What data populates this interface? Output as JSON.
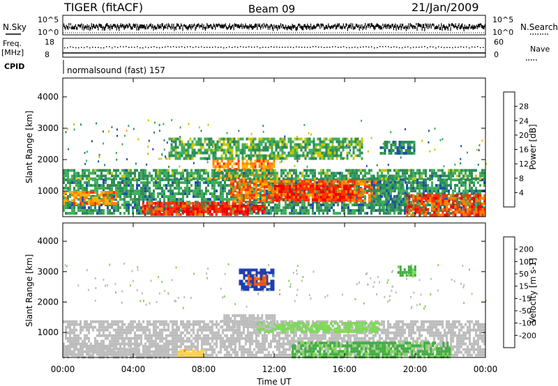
{
  "header": {
    "title": "TIGER (fitACF)",
    "beam": "Beam 09",
    "date": "21/Jan/2009"
  },
  "aux_panels": {
    "nsky_label": "N.Sky",
    "nsky_ticks": [
      "10^5",
      "10^0"
    ],
    "nsearch_label": "N.Search",
    "nsearch_ticks": [
      "10^5",
      "10^0"
    ],
    "freq_label_1": "Freq.",
    "freq_label_2": "[MHz]",
    "freq_ticks": [
      "18",
      "8"
    ],
    "nave_label": "Nave",
    "nave_ticks": [
      "60",
      "0"
    ],
    "cpid_label": "CPID",
    "cpid_text": "normalsound (fast) 157"
  },
  "colors": {
    "power_scale": [
      "#0000ff",
      "#1f4fa8",
      "#2e8b57",
      "#3fae5a",
      "#c8c800",
      "#ffb000",
      "#ff7f00",
      "#ff3000",
      "#ee0000"
    ],
    "velocity_scale": [
      "#ee0000",
      "#ff5a00",
      "#ff9a00",
      "#ffd24a",
      "#bdbdbd",
      "#bdbdbd",
      "#7ed957",
      "#3fae3f",
      "#2e8b57",
      "#1f3fb0",
      "#0000cc"
    ],
    "ground_scatter": "#bdbdbd"
  },
  "chart_data": [
    {
      "type": "heatmap",
      "name": "power",
      "xlabel": "",
      "ylabel": "Slant Range [km]",
      "x_ticks": [
        "00:00",
        "04:00",
        "08:00",
        "12:00",
        "16:00",
        "20:00",
        "00:00"
      ],
      "y_ticks": [
        "1000",
        "2000",
        "3000",
        "4000"
      ],
      "ylim": [
        180,
        4600
      ],
      "colorbar_label": "Power [dB]",
      "colorbar_ticks": [
        "4",
        "8",
        "12",
        "16",
        "20",
        "24",
        "28"
      ],
      "colorbar_range": [
        0,
        32
      ],
      "regions": [
        {
          "t0": 0.0,
          "t1": 24.0,
          "r0": 250,
          "r1": 1400,
          "value": 10
        },
        {
          "t0": 0.0,
          "t1": 3.0,
          "r0": 600,
          "r1": 1000,
          "value": 22
        },
        {
          "t0": 4.5,
          "t1": 10.5,
          "r0": 280,
          "r1": 650,
          "value": 27
        },
        {
          "t0": 7.0,
          "t1": 11.5,
          "r0": 350,
          "r1": 560,
          "value": 29
        },
        {
          "t0": 9.5,
          "t1": 18.0,
          "r0": 650,
          "r1": 1350,
          "value": 24
        },
        {
          "t0": 12.0,
          "t1": 16.5,
          "r0": 750,
          "r1": 1200,
          "value": 28
        },
        {
          "t0": 8.5,
          "t1": 12.0,
          "r0": 1400,
          "r1": 2000,
          "value": 22
        },
        {
          "t0": 17.5,
          "t1": 19.5,
          "r0": 400,
          "r1": 1500,
          "value": 9
        },
        {
          "t0": 19.5,
          "t1": 24.0,
          "r0": 200,
          "r1": 900,
          "value": 26
        },
        {
          "t0": 0.0,
          "t1": 24.0,
          "r0": 1400,
          "r1": 1700,
          "value": 11
        },
        {
          "t0": 6.0,
          "t1": 17.0,
          "r0": 2000,
          "r1": 2700,
          "value": 12
        },
        {
          "t0": 18.0,
          "t1": 20.0,
          "r0": 2200,
          "r1": 2600,
          "value": 9
        }
      ]
    },
    {
      "type": "heatmap",
      "name": "velocity",
      "xlabel": "Time UT",
      "ylabel": "Slant Range [km]",
      "x_ticks": [
        "00:00",
        "04:00",
        "08:00",
        "12:00",
        "16:00",
        "20:00",
        "00:00"
      ],
      "y_ticks": [
        "1000",
        "2000",
        "3000",
        "4000"
      ],
      "ylim": [
        180,
        4600
      ],
      "colorbar_label": "Velocity [m s-1]",
      "colorbar_ticks": [
        "200",
        "100",
        "50",
        "15",
        "-15",
        "-50",
        "-100",
        "-200"
      ],
      "colorbar_range": [
        -250,
        250
      ],
      "regions": [
        {
          "t0": 0.0,
          "t1": 24.0,
          "r0": 250,
          "r1": 1400,
          "value": 0
        },
        {
          "t0": 0.0,
          "t1": 6.0,
          "r0": 200,
          "r1": 600,
          "value": -60
        },
        {
          "t0": 6.5,
          "t1": 8.0,
          "r0": 220,
          "r1": 450,
          "value": -110
        },
        {
          "t0": 11.0,
          "t1": 18.0,
          "r0": 1000,
          "r1": 1350,
          "value": 60
        },
        {
          "t0": 9.0,
          "t1": 12.0,
          "r0": 1200,
          "r1": 1600,
          "value": -30
        },
        {
          "t0": 10.0,
          "t1": 12.0,
          "r0": 2400,
          "r1": 3100,
          "value": 200
        },
        {
          "t0": 10.5,
          "t1": 11.5,
          "r0": 2600,
          "r1": 2900,
          "value": -180
        },
        {
          "t0": 13.0,
          "t1": 22.0,
          "r0": 200,
          "r1": 700,
          "value": 70
        },
        {
          "t0": 19.0,
          "t1": 20.0,
          "r0": 2900,
          "r1": 3200,
          "value": 70
        }
      ]
    }
  ]
}
